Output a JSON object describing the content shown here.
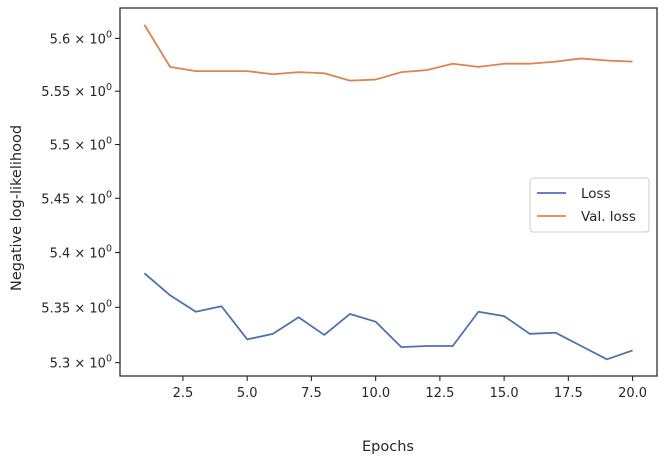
{
  "chart_data": {
    "type": "line",
    "xlabel": "Epochs",
    "ylabel": "Negative log-likelihood",
    "x": [
      1,
      2,
      3,
      4,
      5,
      6,
      7,
      8,
      9,
      10,
      11,
      12,
      13,
      14,
      15,
      16,
      17,
      18,
      19,
      20
    ],
    "xlim": [
      0.05,
      20.95
    ],
    "ylim": [
      5.288,
      5.629
    ],
    "yscale": "log",
    "grid": false,
    "legend_position": "center-right",
    "x_ticks": [
      {
        "value": 2.5,
        "label": "2.5"
      },
      {
        "value": 5.0,
        "label": "5.0"
      },
      {
        "value": 7.5,
        "label": "7.5"
      },
      {
        "value": 10.0,
        "label": "10.0"
      },
      {
        "value": 12.5,
        "label": "12.5"
      },
      {
        "value": 15.0,
        "label": "15.0"
      },
      {
        "value": 17.5,
        "label": "17.5"
      },
      {
        "value": 20.0,
        "label": "20.0"
      }
    ],
    "y_ticks": [
      {
        "value": 5.3,
        "mantissa": "5.3",
        "base": "10",
        "exponent": "0"
      },
      {
        "value": 5.35,
        "mantissa": "5.35",
        "base": "10",
        "exponent": "0"
      },
      {
        "value": 5.4,
        "mantissa": "5.4",
        "base": "10",
        "exponent": "0"
      },
      {
        "value": 5.45,
        "mantissa": "5.45",
        "base": "10",
        "exponent": "0"
      },
      {
        "value": 5.5,
        "mantissa": "5.5",
        "base": "10",
        "exponent": "0"
      },
      {
        "value": 5.55,
        "mantissa": "5.55",
        "base": "10",
        "exponent": "0"
      },
      {
        "value": 5.6,
        "mantissa": "5.6",
        "base": "10",
        "exponent": "0"
      }
    ],
    "series": [
      {
        "name": "Loss",
        "color": "#4c72b0",
        "values": [
          5.381,
          5.361,
          5.346,
          5.351,
          5.321,
          5.326,
          5.341,
          5.325,
          5.344,
          5.337,
          5.314,
          5.315,
          5.315,
          5.346,
          5.342,
          5.326,
          5.327,
          5.315,
          5.303,
          5.311
        ]
      },
      {
        "name": "Val. loss",
        "color": "#dd8452",
        "values": [
          5.613,
          5.573,
          5.569,
          5.569,
          5.569,
          5.566,
          5.568,
          5.567,
          5.56,
          5.561,
          5.568,
          5.57,
          5.576,
          5.573,
          5.576,
          5.576,
          5.578,
          5.581,
          5.579,
          5.578
        ]
      }
    ]
  }
}
